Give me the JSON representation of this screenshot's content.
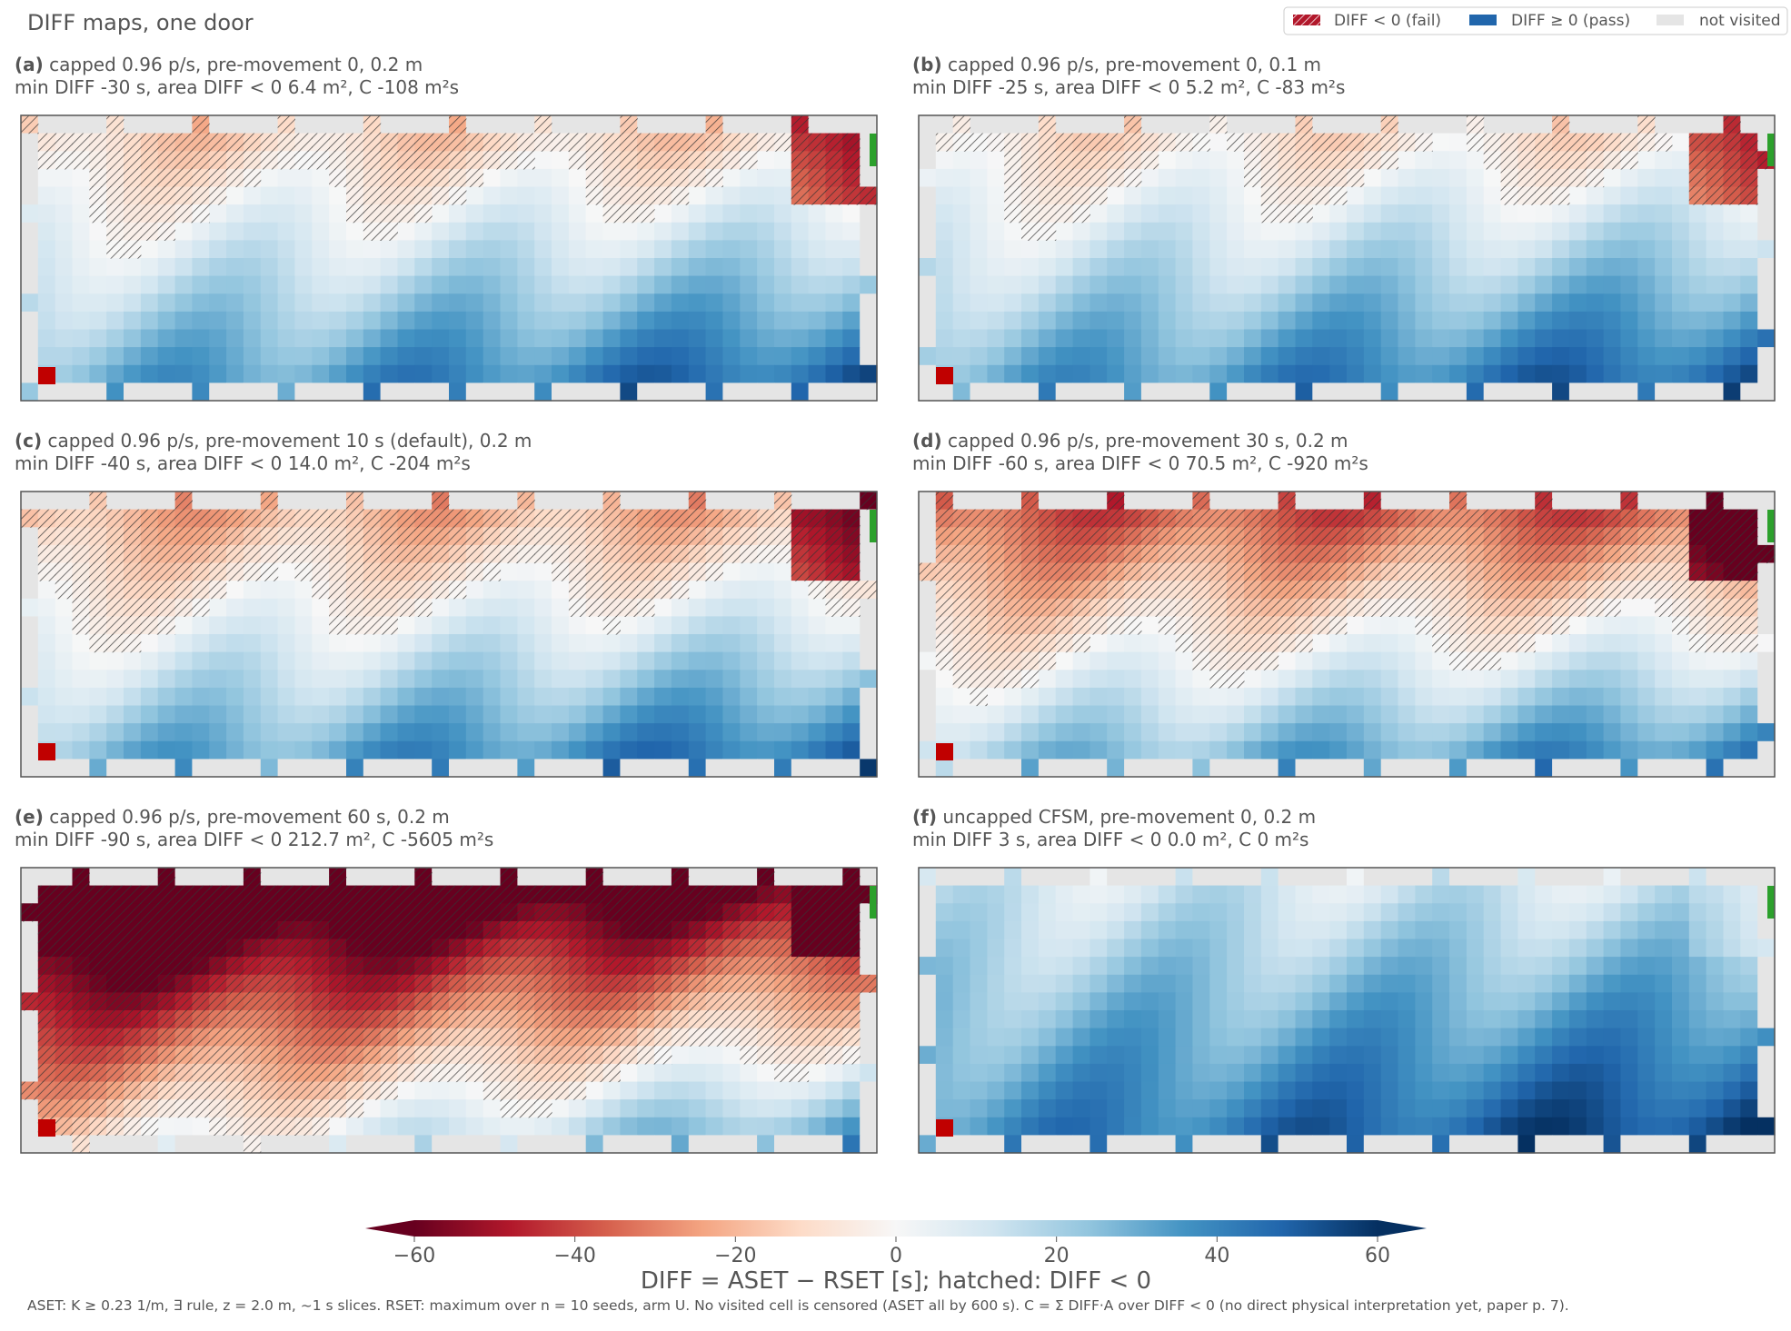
{
  "figure": {
    "title": "DIFF maps, one door",
    "legend": [
      {
        "label": "DIFF < 0 (fail)",
        "icon": "hatched-swatch-icon",
        "color": "#b2182b"
      },
      {
        "label": "DIFF ≥ 0 (pass)",
        "icon": "blue-swatch-icon",
        "color": "#2166ac"
      },
      {
        "label": "not visited",
        "icon": "grey-swatch-icon",
        "color": "#e5e5e5"
      }
    ],
    "footnote": "ASET: K ≥ 0.23 1/m, ∃ rule, z = 2.0 m, ~1 s slices. RSET: maximum over n = 10 seeds, arm U. No visited cell is censored (ASET all by 600 s). C = Σ DIFF·A over DIFF < 0 (no direct physical interpretation yet, paper p. 7).",
    "colorbar": {
      "label": "DIFF = ASET − RSET [s]; hatched: DIFF < 0",
      "range": [
        -60,
        60
      ],
      "ticks": [
        "−60",
        "−40",
        "−20",
        "0",
        "20",
        "40",
        "60"
      ],
      "extend": "both",
      "colormap": "RdBu"
    },
    "door_color": "#2ca02c",
    "source_color": "#c00000"
  },
  "chart_data": [
    {
      "type": "heatmap",
      "panel": "(a)",
      "title": "capped 0.96 p/s, pre-movement 0, 0.2 m",
      "subtitle": "min DIFF -30 s, area DIFF < 0 6.4 m², C -108 m²s",
      "min_diff": -30,
      "area_neg_m2": 6.4,
      "C_m2s": -108
    },
    {
      "type": "heatmap",
      "panel": "(b)",
      "title": "capped 0.96 p/s, pre-movement 0, 0.1 m",
      "subtitle": "min DIFF -25 s, area DIFF < 0 5.2 m², C -83 m²s",
      "min_diff": -25,
      "area_neg_m2": 5.2,
      "C_m2s": -83
    },
    {
      "type": "heatmap",
      "panel": "(c)",
      "title": "capped 0.96 p/s, pre-movement 10 s (default), 0.2 m",
      "subtitle": "min DIFF -40 s, area DIFF < 0 14.0 m², C -204 m²s",
      "min_diff": -40,
      "area_neg_m2": 14.0,
      "C_m2s": -204
    },
    {
      "type": "heatmap",
      "panel": "(d)",
      "title": "capped 0.96 p/s, pre-movement 30 s, 0.2 m",
      "subtitle": "min DIFF -60 s, area DIFF < 0 70.5 m², C -920 m²s",
      "min_diff": -60,
      "area_neg_m2": 70.5,
      "C_m2s": -920
    },
    {
      "type": "heatmap",
      "panel": "(e)",
      "title": "capped 0.96 p/s, pre-movement 60 s, 0.2 m",
      "subtitle": "min DIFF -90 s, area DIFF < 0 212.7 m², C -5605 m²s",
      "min_diff": -90,
      "area_neg_m2": 212.7,
      "C_m2s": -5605
    },
    {
      "type": "heatmap",
      "panel": "(f)",
      "title": "uncapped CFSM, pre-movement 0, 0.2 m",
      "subtitle": "min DIFF 3 s, area DIFF < 0 0.0 m², C 0 m²s",
      "min_diff": 3,
      "area_neg_m2": 0.0,
      "C_m2s": 0
    }
  ]
}
